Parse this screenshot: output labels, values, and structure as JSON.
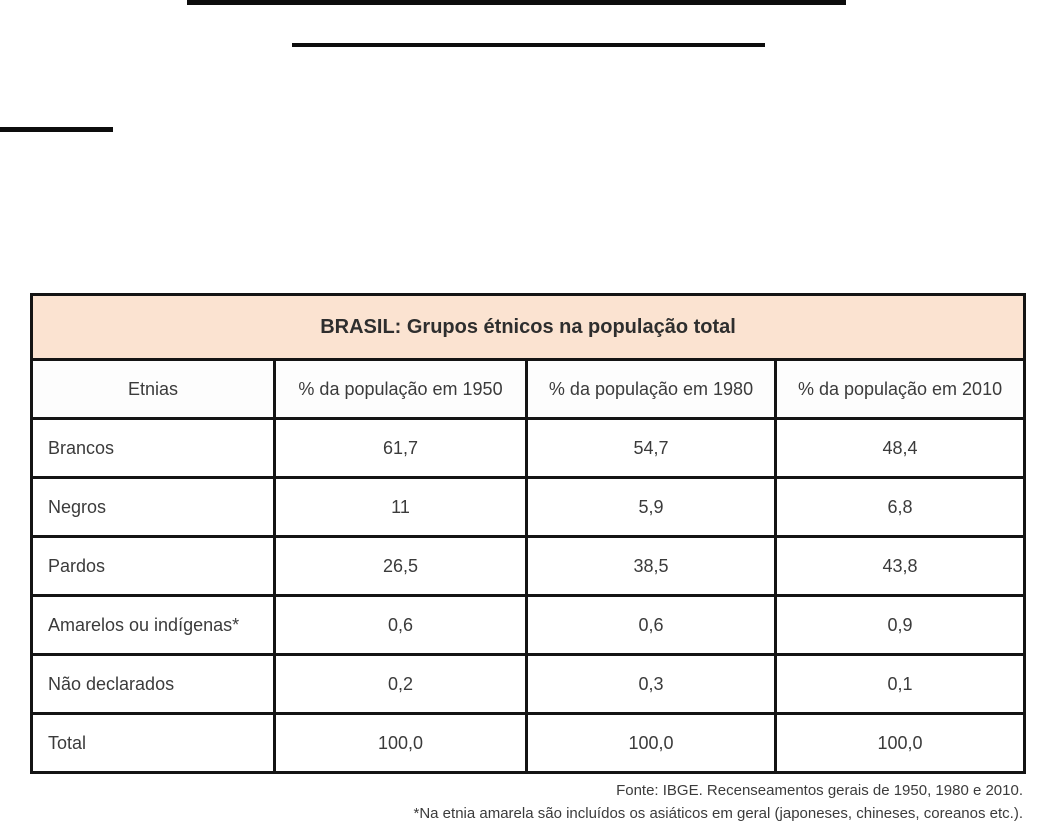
{
  "table": {
    "title": "BRASIL: Grupos étnicos na população total",
    "title_bg": "#fbe3d1",
    "border_color": "#141414",
    "columns": [
      "Etnias",
      "% da população em 1950",
      "% da população em 1980",
      "% da população em 2010"
    ],
    "rows": [
      {
        "label": "Brancos",
        "values": [
          "61,7",
          "54,7",
          "48,4"
        ]
      },
      {
        "label": "Negros",
        "values": [
          "11",
          "5,9",
          "6,8"
        ]
      },
      {
        "label": "Pardos",
        "values": [
          "26,5",
          "38,5",
          "43,8"
        ]
      },
      {
        "label": "Amarelos ou indígenas*",
        "values": [
          "0,6",
          "0,6",
          "0,9"
        ]
      },
      {
        "label": "Não declarados",
        "values": [
          "0,2",
          "0,3",
          "0,1"
        ]
      },
      {
        "label": "Total",
        "values": [
          "100,0",
          "100,0",
          "100,0"
        ]
      }
    ]
  },
  "footnotes": {
    "source": "Fonte: IBGE. Recenseamentos gerais de 1950, 1980 e 2010.",
    "note": "*Na etnia amarela são incluídos os asiáticos em geral (japoneses, chineses, coreanos etc.)."
  },
  "chart_data": {
    "type": "table",
    "title": "BRASIL: Grupos étnicos na população total",
    "categories": [
      "Brancos",
      "Negros",
      "Pardos",
      "Amarelos ou indígenas*",
      "Não declarados",
      "Total"
    ],
    "series": [
      {
        "name": "% da população em 1950",
        "values": [
          61.7,
          11,
          26.5,
          0.6,
          0.2,
          100.0
        ]
      },
      {
        "name": "% da população em 1980",
        "values": [
          54.7,
          5.9,
          38.5,
          0.6,
          0.3,
          100.0
        ]
      },
      {
        "name": "% da população em 2010",
        "values": [
          48.4,
          6.8,
          43.8,
          0.9,
          0.1,
          100.0
        ]
      }
    ],
    "source": "Fonte: IBGE. Recenseamentos gerais de 1950, 1980 e 2010.",
    "note": "*Na etnia amarela são incluídos os asiáticos em geral (japoneses, chineses, coreanos etc.)."
  }
}
